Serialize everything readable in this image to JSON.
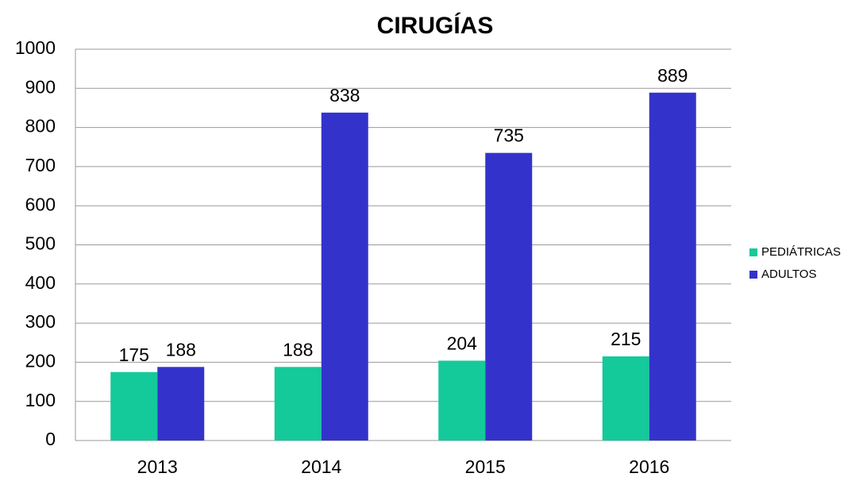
{
  "chart_data": {
    "type": "bar",
    "title": "CIRUGÍAS",
    "categories": [
      "2013",
      "2014",
      "2015",
      "2016"
    ],
    "series": [
      {
        "name": "PEDIÁTRICAS",
        "color": "#14c99a",
        "values": [
          175,
          188,
          204,
          215
        ]
      },
      {
        "name": "ADULTOS",
        "color": "#3333cc",
        "values": [
          188,
          838,
          735,
          889
        ]
      }
    ],
    "ylim": [
      0,
      1000
    ],
    "yticks": [
      0,
      100,
      200,
      300,
      400,
      500,
      600,
      700,
      800,
      900,
      1000
    ],
    "grid": true,
    "legend": "right"
  }
}
